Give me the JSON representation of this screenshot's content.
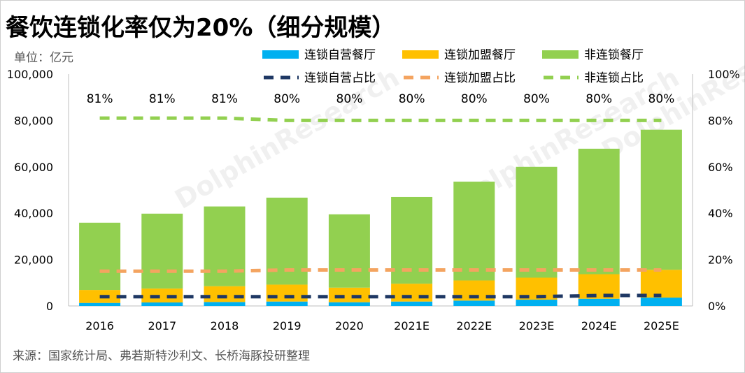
{
  "title": "餐饮连锁化率仅为20%（细分规模）",
  "unit_label": "单位：亿元",
  "source": "来源：国家统计局、弗若斯特沙利文、长桥海豚投研整理",
  "watermark": "DolphinResearch",
  "chart_data": {
    "type": "bar",
    "stacked": true,
    "categories": [
      "2016",
      "2017",
      "2018",
      "2019",
      "2020",
      "2021E",
      "2022E",
      "2023E",
      "2024E",
      "2025E"
    ],
    "series": [
      {
        "name": "连锁自营餐厅",
        "type": "bar",
        "axis": "left",
        "color": "#00B0F0",
        "values": [
          1300,
          1500,
          1700,
          1900,
          1600,
          1900,
          2300,
          2700,
          3100,
          3600
        ]
      },
      {
        "name": "连锁加盟餐厅",
        "type": "bar",
        "axis": "left",
        "color": "#FFC000",
        "values": [
          5600,
          6000,
          6800,
          7300,
          6300,
          7700,
          8700,
          9500,
          10600,
          12000
        ]
      },
      {
        "name": "非连锁餐厅",
        "type": "bar",
        "axis": "left",
        "color": "#92D050",
        "values": [
          29000,
          32300,
          34400,
          37500,
          31600,
          37400,
          42600,
          47800,
          54100,
          60400
        ]
      },
      {
        "name": "连锁自营占比",
        "type": "line",
        "dashed": true,
        "axis": "right",
        "color": "#1F3864",
        "values": [
          4,
          4,
          4,
          4,
          4,
          4,
          4,
          4,
          4.5,
          4.5
        ]
      },
      {
        "name": "连锁加盟占比",
        "type": "line",
        "dashed": true,
        "axis": "right",
        "color": "#F4A460",
        "values": [
          15,
          15,
          15,
          15.5,
          15.5,
          15.5,
          15.5,
          15.5,
          15.5,
          15.5
        ]
      },
      {
        "name": "非连锁占比",
        "type": "line",
        "dashed": true,
        "axis": "right",
        "color": "#92D050",
        "values": [
          81,
          81,
          81,
          80,
          80,
          80,
          80,
          80,
          80,
          80
        ]
      }
    ],
    "data_labels": [
      "81%",
      "81%",
      "81%",
      "80%",
      "80%",
      "80%",
      "80%",
      "80%",
      "80%",
      "80%"
    ],
    "left_axis": {
      "ylim": [
        0,
        100000
      ],
      "ticks": [
        "0",
        "20,000",
        "40,000",
        "60,000",
        "80,000",
        "100,000"
      ]
    },
    "right_axis": {
      "ylim": [
        0,
        100
      ],
      "ticks": [
        "0%",
        "20%",
        "40%",
        "60%",
        "80%",
        "100%"
      ]
    },
    "legend_position": "top",
    "grid": false
  }
}
